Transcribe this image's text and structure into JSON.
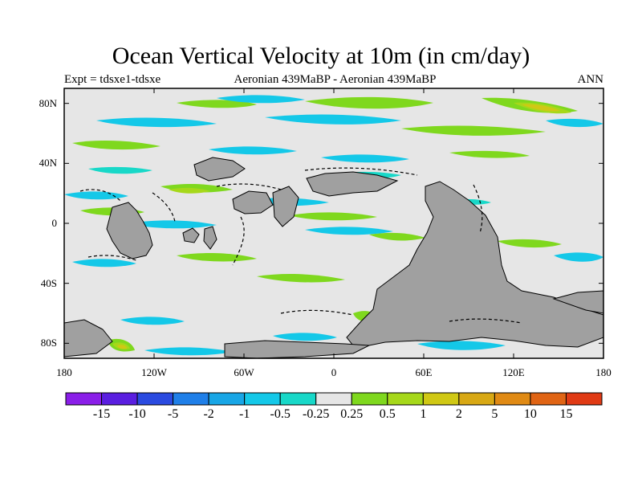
{
  "title": "Ocean Vertical Velocity at 10m (in cm/day)",
  "subtitle_left": "Expt = tdsxe1-tdsxe",
  "subtitle_center": "Aeronian 439MaBP - Aeronian 439MaBP",
  "subtitle_right": "ANN",
  "map": {
    "lon_range": [
      -180,
      180
    ],
    "lat_range": [
      -90,
      90
    ],
    "lat_ticks": [
      {
        "value": 80,
        "label": "80N"
      },
      {
        "value": 40,
        "label": "40N"
      },
      {
        "value": 0,
        "label": "0"
      },
      {
        "value": -40,
        "label": "40S"
      },
      {
        "value": -80,
        "label": "80S"
      }
    ],
    "lon_ticks": [
      {
        "value": -180,
        "label": "180"
      },
      {
        "value": -120,
        "label": "120W"
      },
      {
        "value": -60,
        "label": "60W"
      },
      {
        "value": 0,
        "label": "0"
      },
      {
        "value": 60,
        "label": "60E"
      },
      {
        "value": 120,
        "label": "120E"
      },
      {
        "value": 180,
        "label": "180"
      }
    ],
    "background_color": "#e6e6e6",
    "land_color": "#a0a0a0"
  },
  "colorbar": {
    "colors": [
      "#8a1ee8",
      "#5a1ee0",
      "#2a4ae0",
      "#1f7fe8",
      "#18a6e6",
      "#14c8e8",
      "#18d8c8",
      "#e6e6e6",
      "#7fd81e",
      "#a6d81a",
      "#d0c814",
      "#d8a814",
      "#e08a14",
      "#e06414",
      "#e03a14"
    ],
    "labels": [
      "-15",
      "-10",
      "-5",
      "-2",
      "-1",
      "-0.5",
      "-0.25",
      "0.25",
      "0.5",
      "1",
      "2",
      "5",
      "10",
      "15"
    ]
  }
}
